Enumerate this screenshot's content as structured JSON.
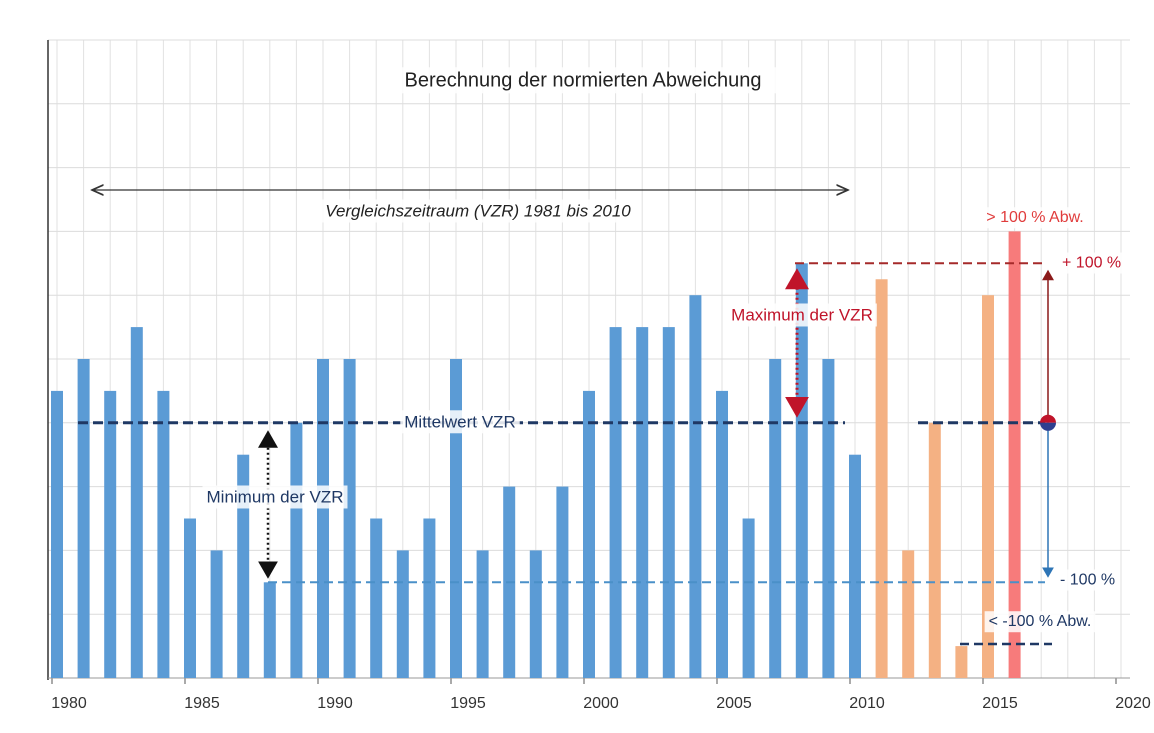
{
  "chart_data": {
    "type": "bar",
    "title": "Berechnung der normierten Abweichung",
    "xlim": [
      1980,
      2020
    ],
    "xticks": [
      1980,
      1985,
      1990,
      1995,
      2000,
      2005,
      2010,
      2015,
      2020
    ],
    "ylim": [
      0,
      10
    ],
    "yticks": [
      0,
      1,
      2,
      3,
      4,
      5,
      6,
      7,
      8,
      9,
      10
    ],
    "grid": true,
    "series": [
      {
        "color": "#5b9bd5",
        "x": [
          1980,
          1981,
          1982,
          1983,
          1984,
          1985,
          1986,
          1987,
          1988,
          1989,
          1990,
          1991,
          1992,
          1993,
          1994,
          1995,
          1996,
          1997,
          1998,
          1999,
          2000,
          2001,
          2002,
          2003,
          2004,
          2005,
          2006,
          2007,
          2008,
          2009,
          2010
        ],
        "values": [
          4.5,
          5,
          4.5,
          5.5,
          4.5,
          2.5,
          2,
          3.5,
          1.5,
          4,
          5,
          5,
          2.5,
          2,
          2.5,
          5,
          2,
          3,
          2,
          3,
          4.5,
          5.5,
          5.5,
          5.5,
          6,
          4.5,
          2.5,
          5,
          6.5,
          5,
          3.5
        ]
      },
      {
        "color": "#f4b183",
        "x": [
          2011,
          2012,
          2013,
          2014,
          2015
        ],
        "values": [
          6.25,
          2,
          4,
          0.5,
          6
        ]
      },
      {
        "color": "#f77b7b",
        "x": [
          2016
        ],
        "values": [
          7
        ]
      }
    ],
    "reference_lines": [
      {
        "label": "Mittelwert VZR",
        "value": 4
      },
      {
        "label": "Maximum der VZR",
        "value": 6.5
      },
      {
        "label": "Minimum der VZR",
        "value": 1.5
      }
    ],
    "annotations": {
      "period": "Vergleichszeitraum (VZR) 1981 bis 2010",
      "above": "> 100 % Abw.",
      "plus": "+ 100 %",
      "minus": "- 100 %",
      "below": "< -100 % Abw."
    }
  }
}
